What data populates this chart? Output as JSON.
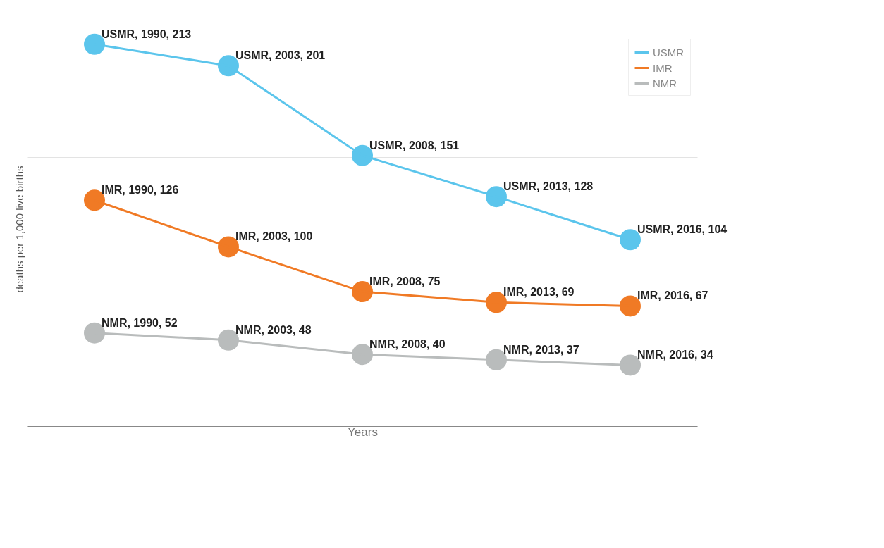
{
  "chart_data": {
    "type": "line",
    "xlabel": "Years",
    "ylabel": "deaths per 1,000 live births",
    "categories": [
      null,
      null,
      null,
      null,
      null
    ],
    "series": [
      {
        "name": "USMR",
        "color": "#5bc5ec",
        "values": [
          213,
          201,
          151,
          128,
          104
        ],
        "value_labels": [
          "USMR, 1990, 213",
          "USMR, 2003, 201",
          "USMR, 2008, 151",
          "USMR, 2013, 128",
          "USMR, 2016, 104"
        ]
      },
      {
        "name": "IMR",
        "color": "#f07a25",
        "values": [
          126,
          100,
          75,
          69,
          67
        ],
        "value_labels": [
          "IMR, 1990, 126",
          "IMR, 2003, 100",
          "IMR, 2008, 75",
          "IMR, 2013, 69",
          "IMR, 2016, 67"
        ]
      },
      {
        "name": "NMR",
        "color": "#b9bcbc",
        "values": [
          52,
          48,
          40,
          37,
          34
        ],
        "value_labels": [
          "NMR, 1990, 52",
          "NMR, 2003, 48",
          "NMR, 2008, 40",
          "NMR, 2013, 37",
          "NMR, 2016, 34"
        ]
      }
    ],
    "tick_labels": false,
    "grid": "y",
    "legend": "top right",
    "marker": "circle",
    "line_style": "solid"
  }
}
